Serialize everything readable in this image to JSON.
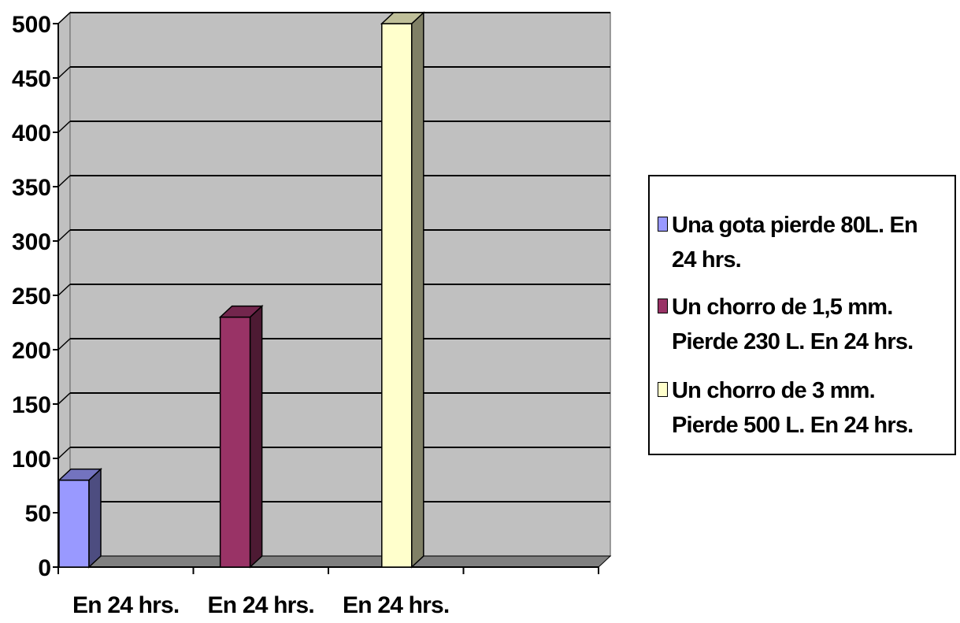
{
  "chart_data": {
    "type": "bar",
    "title": "",
    "xlabel": "",
    "ylabel": "",
    "categories": [
      "En 24 hrs.",
      "En 24 hrs.",
      "En 24 hrs."
    ],
    "series": [
      {
        "name": "Una gota pierde 80L. En 24 hrs.",
        "values": [
          80,
          null,
          null
        ],
        "color": "#9999ff"
      },
      {
        "name": "Un chorro de 1,5 mm. Pierde 230 L. En 24 hrs.",
        "values": [
          null,
          230,
          null
        ],
        "color": "#993366"
      },
      {
        "name": "Un chorro de 3 mm. Pierde 500 L. En 24 hrs.",
        "values": [
          null,
          null,
          500
        ],
        "color": "#ffffcc"
      }
    ],
    "ylim": [
      0,
      500
    ],
    "yticks": [
      0,
      50,
      100,
      150,
      200,
      250,
      300,
      350,
      400,
      450,
      500
    ],
    "grid": true,
    "legend_position": "right",
    "plot_background": "#c0c0c0",
    "floor_color": "#808080",
    "style": "3d-column"
  },
  "legend": {
    "items": [
      {
        "line1": "Una gota pierde 80L. En",
        "line2": "24 hrs.",
        "color": "#9999ff"
      },
      {
        "line1": "Un chorro de 1,5 mm.",
        "line2": "Pierde 230 L. En 24 hrs.",
        "color": "#993366"
      },
      {
        "line1": "Un chorro de 3 mm.",
        "line2": "Pierde 500 L. En 24 hrs.",
        "color": "#ffffcc"
      }
    ]
  }
}
